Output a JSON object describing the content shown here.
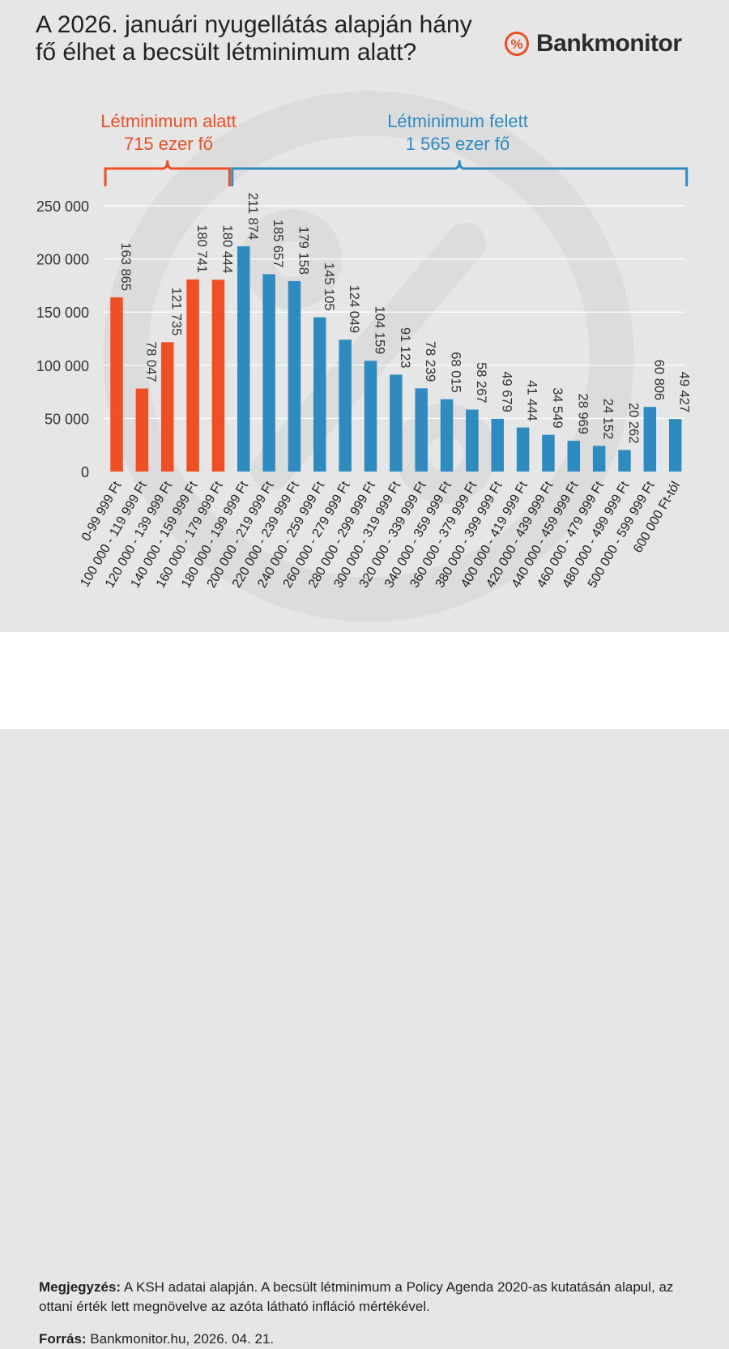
{
  "title": "A 2026. januári nyugellátás alapján hány fő élhet a becsült létminimum alatt?",
  "brand": {
    "name": "Bankmonitor",
    "icon": "percent-circle-icon",
    "color": "#f04e23"
  },
  "colors": {
    "below": "#f04e23",
    "above": "#2e8bc0",
    "watermark": "#dcdcdc",
    "grid": "#ffffff",
    "text": "#333333"
  },
  "groups": {
    "below": {
      "label": "Létminimum alatt",
      "value": "715 ezer fő",
      "start": 0,
      "end": 4
    },
    "above": {
      "label": "Létminimum felett",
      "value": "1 565 ezer fő",
      "start": 5,
      "end": 22
    }
  },
  "chart_data": {
    "type": "bar",
    "title": "A 2026. januári nyugellátás alapján hány fő élhet a becsült létminimum alatt?",
    "xlabel": "",
    "ylabel": "",
    "ylim": [
      0,
      250000
    ],
    "yticks": [
      0,
      50000,
      100000,
      150000,
      200000,
      250000
    ],
    "ytick_labels": [
      "0",
      "50 000",
      "100 000",
      "150 000",
      "200 000",
      "250 000"
    ],
    "grid": true,
    "categories": [
      "0-99 999 Ft",
      "100 000 - 119 999 Ft",
      "120 000 - 139 999 Ft",
      "140 000 - 159 999 Ft",
      "160 000 - 179 999 Ft",
      "180 000 - 199 999 Ft",
      "200 000 - 219 999 Ft",
      "220 000 - 239 999 Ft",
      "240 000 - 259 999 Ft",
      "260 000 - 279 999 Ft",
      "280 000 - 299 999 Ft",
      "300 000 - 319 999 Ft",
      "320 000 - 339 999 Ft",
      "340 000 - 359 999 Ft",
      "360 000 - 379 999 Ft",
      "380 000 - 399 999 Ft",
      "400 000 - 419 999 Ft",
      "420 000 - 439 999 Ft",
      "440 000 - 459 999 Ft",
      "460 000 - 479 999 Ft",
      "480 000 - 499 999 Ft",
      "500 000 - 599 999 Ft",
      "600 000 Ft-tól"
    ],
    "values": [
      163865,
      78047,
      121735,
      180741,
      180444,
      211874,
      185657,
      179158,
      145105,
      124049,
      104159,
      91123,
      78239,
      68015,
      58267,
      49679,
      41444,
      34549,
      28969,
      24152,
      20262,
      60806,
      49427
    ],
    "value_labels": [
      "163 865",
      "78 047",
      "121 735",
      "180 741",
      "180 444",
      "211 874",
      "185 657",
      "179 158",
      "145 105",
      "124 049",
      "104 159",
      "91 123",
      "78 239",
      "68 015",
      "58 267",
      "49 679",
      "41 444",
      "34 549",
      "28 969",
      "24 152",
      "20 262",
      "60 806",
      "49 427"
    ]
  },
  "footer": {
    "note_label": "Megjegyzés:",
    "note_text": " A KSH adatai alapján. A becsült létminimum a Policy Agenda 2020-as kutatásán alapul, az ottani érték lett megnövelve az azóta látható infláció mértékével.",
    "source_label": "Forrás:",
    "source_text": " Bankmonitor.hu, 2026. 04. 21."
  }
}
